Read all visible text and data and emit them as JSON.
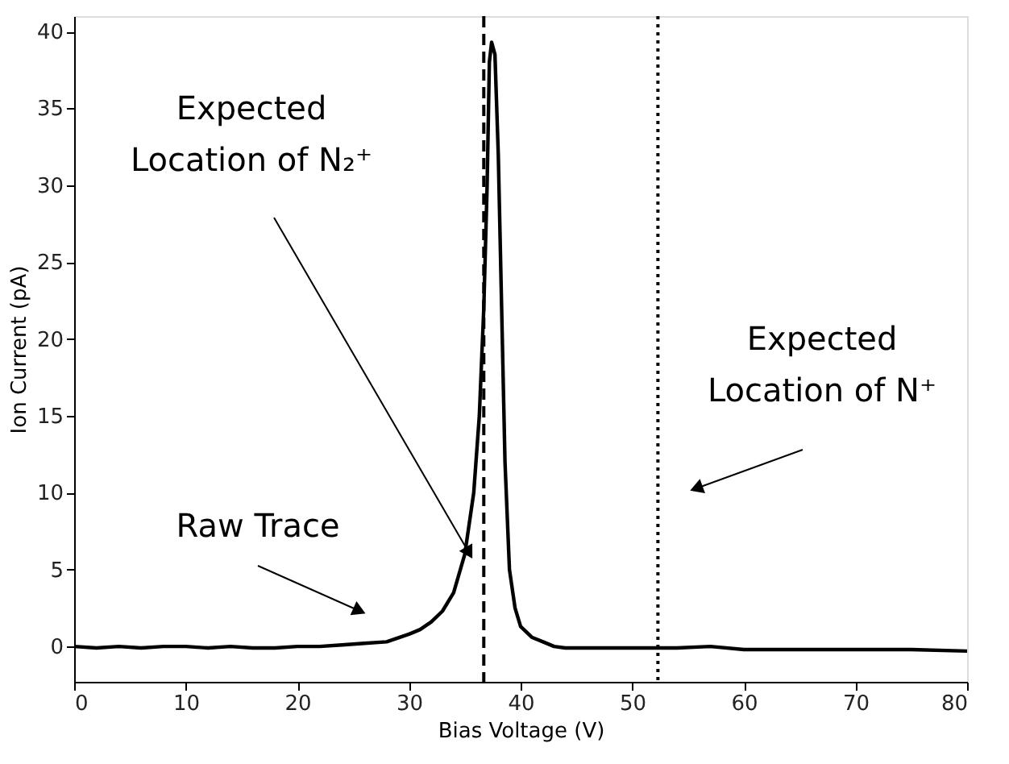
{
  "chart_data": {
    "type": "line",
    "xlabel": "Bias Voltage (V)",
    "ylabel": "Ion Current (pA)",
    "x": [
      0,
      2,
      4,
      6,
      8,
      10,
      12,
      14,
      16,
      18,
      20,
      22,
      24,
      26,
      28,
      30,
      31,
      32,
      33,
      34,
      35,
      35.8,
      36.3,
      36.7,
      37.0,
      37.2,
      37.4,
      37.7,
      38.0,
      38.3,
      38.6,
      39.0,
      39.5,
      40,
      41,
      42,
      43,
      44,
      46,
      50,
      54,
      57,
      60,
      65,
      70,
      75,
      80
    ],
    "series": [
      {
        "color": "#000000",
        "values": [
          0,
          -0.1,
          0,
          -0.1,
          0,
          0,
          -0.1,
          0,
          -0.1,
          -0.1,
          0,
          0,
          0.1,
          0.2,
          0.3,
          0.8,
          1.1,
          1.6,
          2.3,
          3.5,
          6,
          10,
          15,
          22,
          30,
          38,
          39.3,
          38.5,
          32,
          22,
          12,
          5,
          2.5,
          1.3,
          0.6,
          0.3,
          0,
          -0.1,
          -0.1,
          -0.1,
          -0.1,
          0,
          -0.2,
          -0.2,
          -0.2,
          -0.2,
          -0.3
        ]
      }
    ],
    "xlim": [
      0,
      80
    ],
    "xticks": [
      0,
      10,
      20,
      30,
      40,
      50,
      60,
      70,
      80
    ],
    "ylim": [
      -2.3,
      41.0
    ],
    "yticks": [
      0,
      5,
      10,
      15,
      20,
      25,
      30,
      35,
      40
    ],
    "ref_lines": [
      {
        "axis": "x",
        "value": 36.7,
        "line_style": "dashed",
        "color": "#000000"
      },
      {
        "axis": "x",
        "value": 52.3,
        "line_style": "dotted",
        "color": "#000000"
      }
    ],
    "annotations": [
      "Expected\nLocation of N₂⁺",
      "Raw Trace",
      "Expected\nLocation of N⁺"
    ],
    "grid": false,
    "line_style": "solid",
    "marker": "none"
  }
}
